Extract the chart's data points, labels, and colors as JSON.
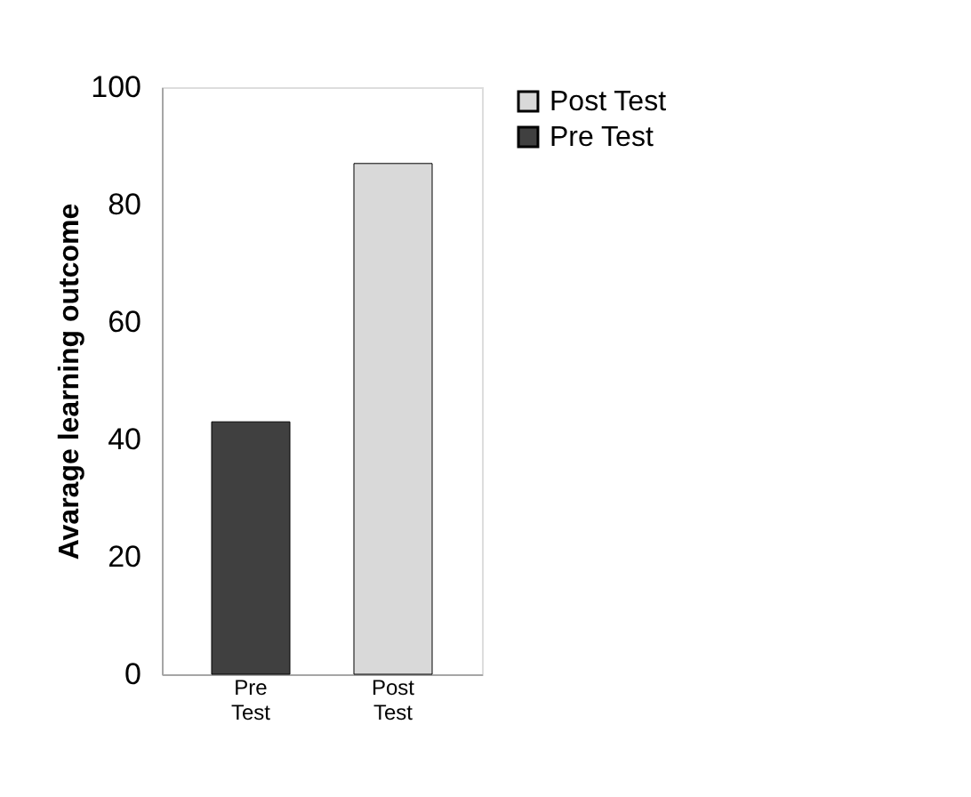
{
  "chart_data": {
    "type": "bar",
    "ylabel": "Avarage learning outcome",
    "categories": [
      "Pre Test",
      "Post Test"
    ],
    "series": [
      {
        "name": "Post Test",
        "color": "#d9d9d9",
        "values": [
          null,
          87
        ]
      },
      {
        "name": "Pre Test",
        "color": "#404040",
        "values": [
          43,
          null
        ]
      }
    ],
    "ylim": [
      0,
      100
    ],
    "yticks": [
      0,
      20,
      40,
      60,
      80,
      100
    ],
    "grid": false,
    "legend": "right"
  }
}
